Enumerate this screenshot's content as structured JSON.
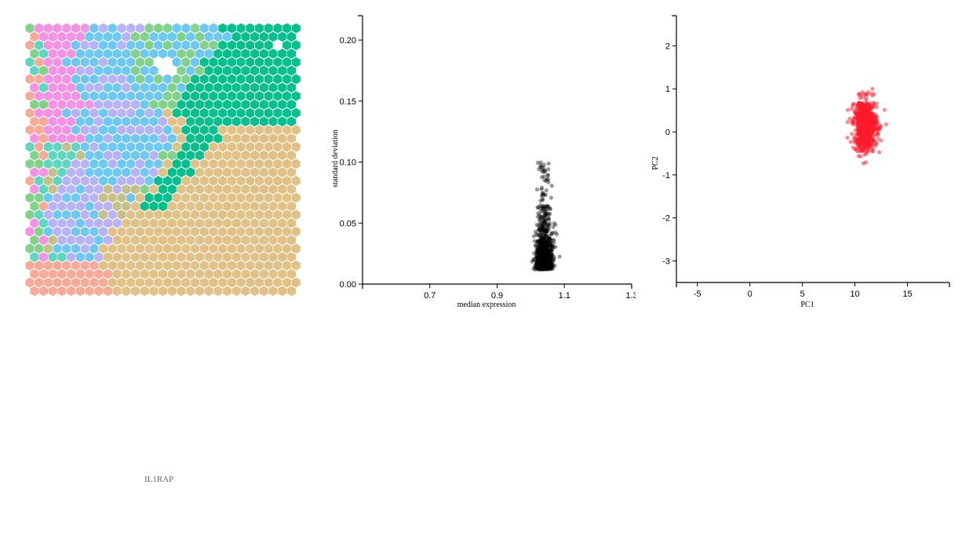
{
  "gene_label": "IL1RAP",
  "hexmap": {
    "columns": 30,
    "rows": 32,
    "palette": {
      "salmon": "#f8aa98",
      "pink": "#f492e4",
      "lavender": "#b7b3f6",
      "skyblue": "#6ec9f2",
      "lightgreen": "#82d28a",
      "teal": "#5fd6c0",
      "olive": "#c4c088",
      "tan": "#e0c286",
      "green": "#05c08c",
      "white": "#ffffff"
    }
  },
  "chart_data": [
    {
      "type": "scatter",
      "xlabel": "median expression",
      "ylabel": "standard deviation",
      "xlim": [
        0.5,
        1.3
      ],
      "ylim": [
        0.0,
        0.22
      ],
      "xticks": [
        0.7,
        0.9,
        1.1,
        1.3
      ],
      "yticks": [
        0.0,
        0.05,
        0.1,
        0.15,
        0.2
      ],
      "point_color": "#000000",
      "cluster": {
        "x_center": 1.04,
        "x_spread": 0.012,
        "y_min": 0.012,
        "y_max": 0.1,
        "y_mode": 0.025
      }
    },
    {
      "type": "scatter",
      "xlabel": "PC1",
      "ylabel": "PC2",
      "xlim": [
        -7,
        19
      ],
      "ylim": [
        -3.5,
        2.7
      ],
      "xticks": [
        -5,
        0,
        5,
        10,
        15
      ],
      "yticks": [
        -3,
        -2,
        -1,
        0,
        1,
        2
      ],
      "point_color": "#ff1a2a",
      "cluster": {
        "x_center": 11,
        "x_spread": 0.55,
        "y_center": 0.15,
        "y_spread": 0.3,
        "y_min": -1.0,
        "y_max": 1.0
      }
    }
  ]
}
